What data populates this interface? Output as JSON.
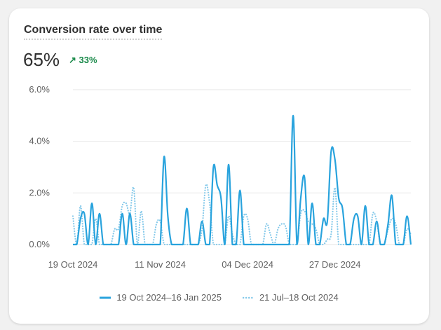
{
  "card": {
    "title": "Conversion rate over time",
    "metric": "65%",
    "delta": "33%",
    "delta_icon": "arrow-up-right-icon"
  },
  "colors": {
    "current": "#29a3dd",
    "previous": "#84c9ea",
    "grid": "#e6e6e6",
    "positive": "#1a8a4a"
  },
  "chart_data": {
    "type": "line",
    "title": "Conversion rate over time",
    "ylim": [
      0,
      6
    ],
    "yticks": [
      "0.0%",
      "2.0%",
      "4.0%",
      "6.0%"
    ],
    "ytick_values": [
      0,
      2,
      4,
      6
    ],
    "xticks": [
      "19 Oct 2024",
      "11 Nov 2024",
      "04 Dec 2024",
      "27 Dec 2024"
    ],
    "xtick_days": [
      0,
      23,
      46,
      69
    ],
    "days": 90,
    "grid": true,
    "legend_position": "bottom",
    "series": [
      {
        "name": "19 Oct 2024–16 Jan 2025",
        "style": "solid",
        "values": [
          0,
          0,
          1.0,
          1.2,
          0,
          1.6,
          0,
          1.2,
          0,
          0,
          0,
          0,
          0,
          1.2,
          0,
          1.2,
          0,
          0,
          0,
          0,
          0,
          0,
          0,
          0,
          3.4,
          1.1,
          0,
          0,
          0,
          0,
          1.4,
          0,
          0,
          0,
          0.9,
          0,
          0,
          3.0,
          2.3,
          1.8,
          0,
          3.1,
          0,
          0,
          2.1,
          0,
          0,
          0,
          0,
          0,
          0,
          0,
          0,
          0,
          0,
          0,
          0,
          0,
          5.0,
          0,
          1.8,
          2.6,
          0,
          1.6,
          0,
          0,
          1.0,
          0.9,
          3.6,
          3.3,
          1.8,
          1.4,
          0,
          0,
          1.0,
          1.1,
          0,
          1.5,
          0,
          0,
          0.9,
          0,
          0,
          0.8,
          1.9,
          0,
          0,
          0,
          1.1,
          0
        ]
      },
      {
        "name": "21 Jul–18 Oct 2024",
        "style": "dotted",
        "values": [
          1.1,
          0,
          1.5,
          0,
          0,
          0,
          1.0,
          0,
          0,
          0,
          0,
          0.6,
          0.6,
          1.5,
          1.6,
          1.2,
          2.2,
          0,
          1.3,
          0,
          0,
          0,
          0.8,
          0.9,
          0,
          0,
          0,
          0,
          0,
          0,
          0,
          0,
          0,
          0,
          0.6,
          2.3,
          1.6,
          0,
          0,
          0,
          0,
          1.1,
          0.4,
          0,
          0,
          1.1,
          1.0,
          0,
          0,
          0,
          0,
          0.8,
          0.4,
          0,
          0.6,
          0.8,
          0.7,
          0,
          0,
          0,
          1.2,
          1.3,
          0.9,
          0.8,
          0.6,
          0,
          0,
          0.2,
          0.4,
          2.2,
          0,
          0,
          0,
          0,
          0,
          0,
          0,
          0,
          0,
          1.2,
          0.9,
          0,
          0,
          0.6,
          1.0,
          0.8,
          0,
          0,
          0.6,
          0.4
        ]
      }
    ]
  }
}
